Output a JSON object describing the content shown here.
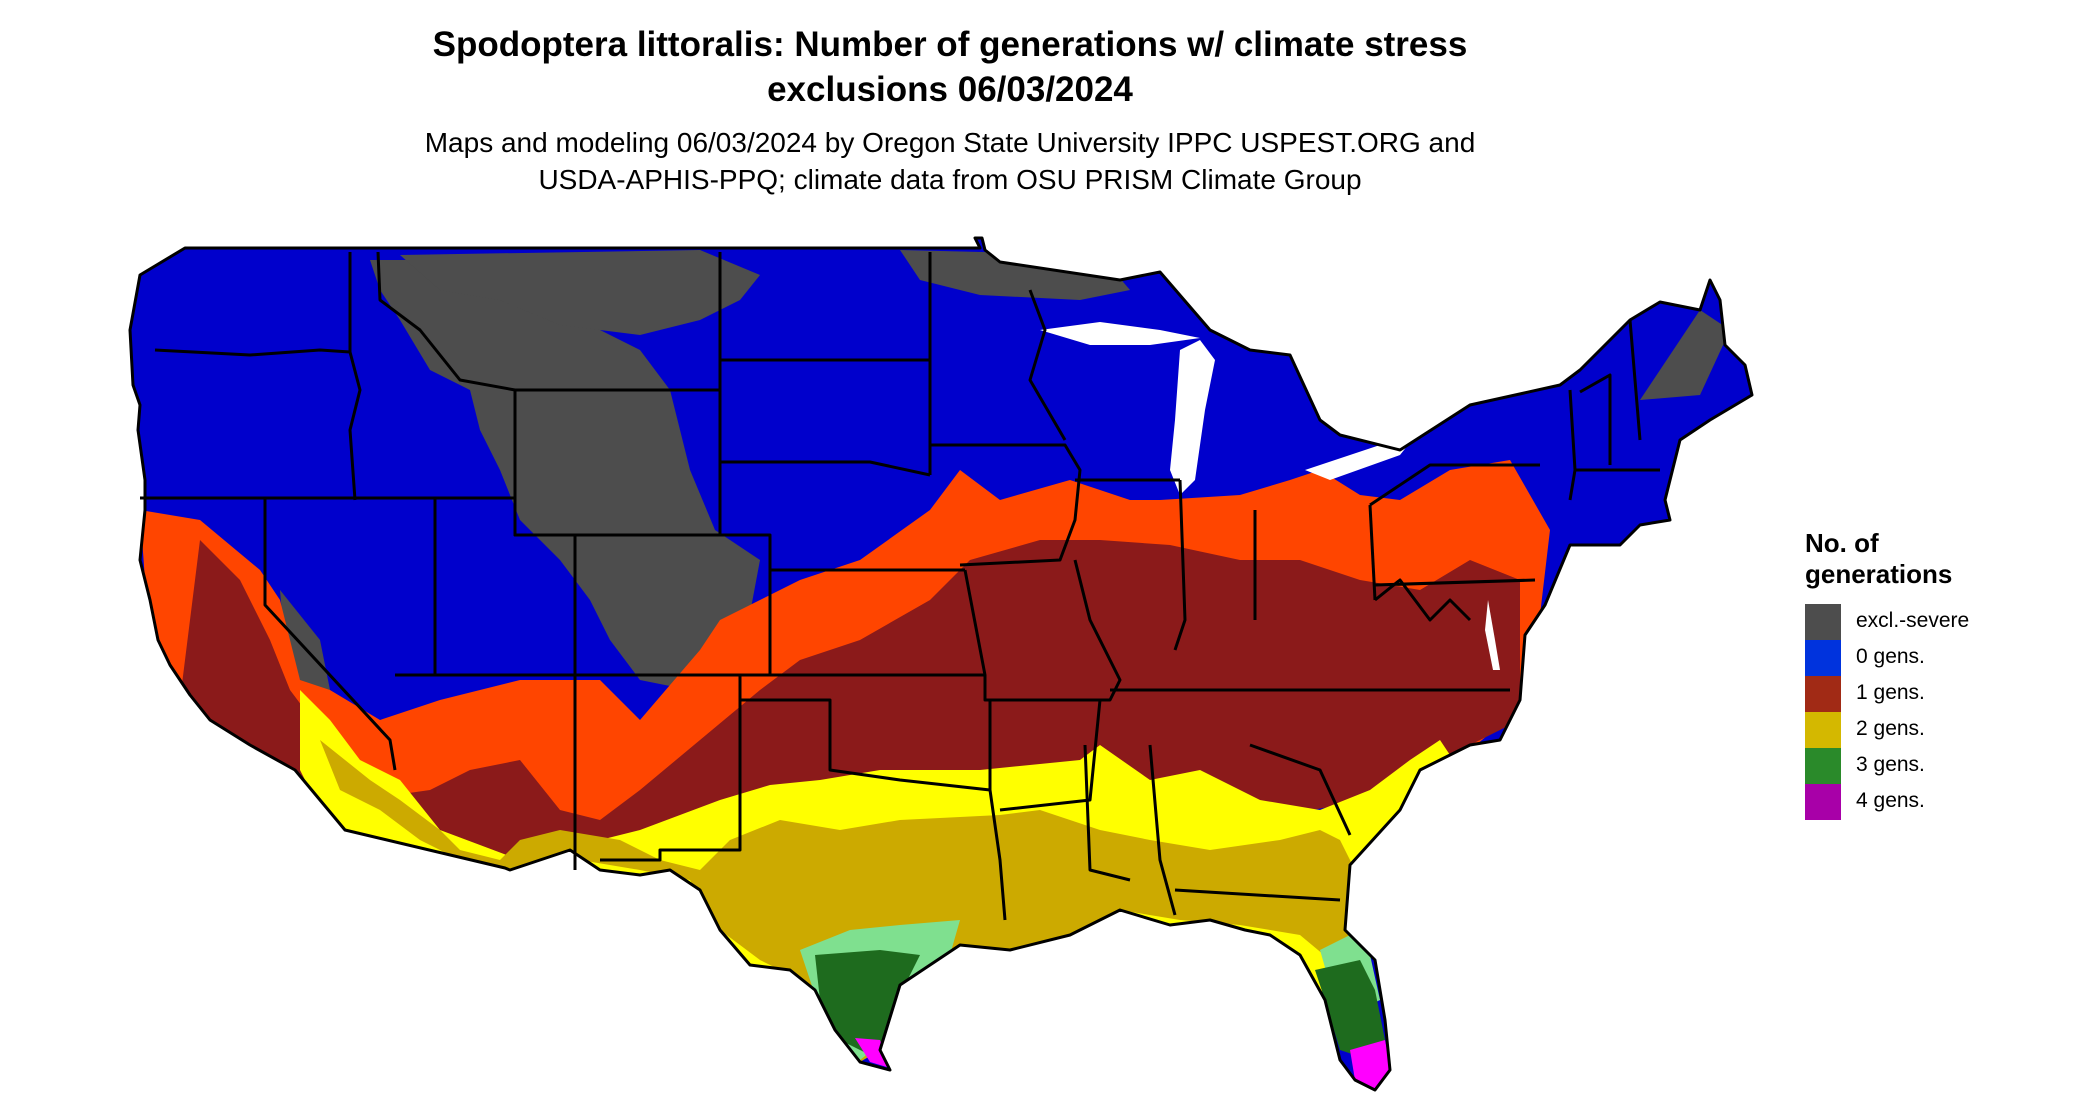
{
  "title": {
    "line1": "Spodoptera littoralis: Number of generations w/ climate stress",
    "line2": "exclusions 06/03/2024"
  },
  "subtitle": {
    "line1": "Maps and modeling 06/03/2024 by Oregon State University IPPC USPEST.ORG and",
    "line2": "USDA-APHIS-PPQ; climate data from OSU PRISM Climate Group"
  },
  "legend": {
    "title_line1": "No. of",
    "title_line2": "generations",
    "items": [
      {
        "label": "excl.-severe",
        "color": "#4d4d4d"
      },
      {
        "label": "0 gens.",
        "color": "#0000cc"
      },
      {
        "label": "1 gens.",
        "color": "#8b1a1a"
      },
      {
        "label": "2 gens.",
        "color": "#ccaa00"
      },
      {
        "label": "3 gens.",
        "color": "#1e6b1e"
      },
      {
        "label": "4 gens.",
        "color": "#a000a0"
      }
    ]
  },
  "map_colors": {
    "excl_severe": "#4d4d4d",
    "gens_0": "#0000cc",
    "gens_1_light": "#ff4500",
    "gens_1": "#8b1a1a",
    "gens_2_light": "#ffff00",
    "gens_2": "#ccaa00",
    "gens_3_light": "#7fe08f",
    "gens_3": "#006400",
    "gens_4": "#ff00ff",
    "borders": "#000000"
  }
}
